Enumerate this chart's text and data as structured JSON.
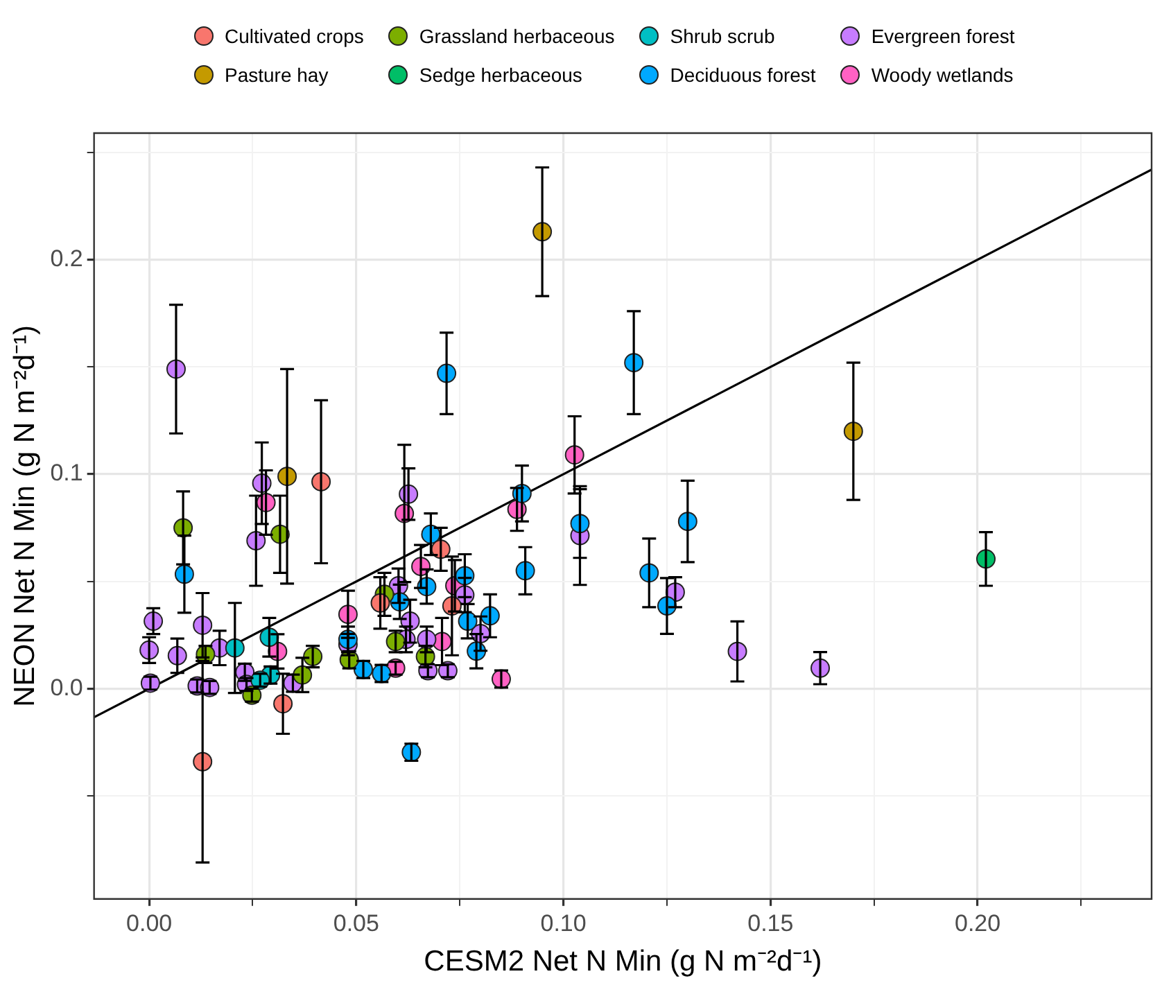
{
  "chart_data": {
    "type": "scatter",
    "xlabel": "CESM2 Net N Min (g N m⁻²d⁻¹)",
    "ylabel": "NEON Net N Min (g N m⁻²d⁻¹)",
    "xlim": [
      -0.0133,
      0.242
    ],
    "ylim": [
      -0.098,
      0.259
    ],
    "xticks": [
      {
        "value": 0,
        "label": "0.00"
      },
      {
        "value": 0.025,
        "label": null
      },
      {
        "value": 0.05,
        "label": "0.05"
      },
      {
        "value": 0.075,
        "label": null
      },
      {
        "value": 0.1,
        "label": "0.10"
      },
      {
        "value": 0.125,
        "label": null
      },
      {
        "value": 0.15,
        "label": "0.15"
      },
      {
        "value": 0.175,
        "label": null
      },
      {
        "value": 0.2,
        "label": "0.20"
      },
      {
        "value": 0.225,
        "label": null
      }
    ],
    "yticks": [
      {
        "value": -0.05,
        "label": null
      },
      {
        "value": 0,
        "label": "0.0"
      },
      {
        "value": 0.05,
        "label": null
      },
      {
        "value": 0.1,
        "label": "0.1"
      },
      {
        "value": 0.15,
        "label": null
      },
      {
        "value": 0.2,
        "label": "0.2"
      },
      {
        "value": 0.25,
        "label": null
      }
    ],
    "grid": true,
    "legend": "top",
    "marker": "circle",
    "series": [
      {
        "name": "Cultivated crops",
        "color": "#f8766d",
        "x": [
          0.0129,
          0.0323,
          0.0415,
          0.0558,
          0.0704,
          0.0731
        ],
        "values": [
          -0.034,
          -0.007,
          0.0965,
          0.04,
          0.065,
          0.0386
        ],
        "errors": [
          0.047,
          0.014,
          0.038,
          0.012,
          0.01,
          0.023
        ]
      },
      {
        "name": "Pasture hay",
        "color": "#c49a00",
        "x": [
          0.0333,
          0.0949,
          0.17
        ],
        "values": [
          0.099,
          0.213,
          0.12
        ],
        "errors": [
          0.05,
          0.03,
          0.032
        ]
      },
      {
        "name": "Grassland herbaceous",
        "color": "#7cae00",
        "x": [
          0.0082,
          0.0316,
          0.0136,
          0.0248,
          0.037,
          0.0395,
          0.0483,
          0.0568,
          0.0595,
          0.0667
        ],
        "values": [
          0.075,
          0.072,
          0.016,
          -0.003,
          0.0064,
          0.015,
          0.0135,
          0.044,
          0.022,
          0.015
        ],
        "errors": [
          0.017,
          0.018,
          0.004,
          0.003,
          0.008,
          0.005,
          0.004,
          0.01,
          0.005,
          0.005
        ]
      },
      {
        "name": "Sedge herbaceous",
        "color": "#00be67",
        "x": [
          0.202
        ],
        "values": [
          0.0605
        ],
        "errors": [
          0.0125
        ]
      },
      {
        "name": "Shrub scrub",
        "color": "#00bfc4",
        "x": [
          0.0207,
          0.029,
          0.0293,
          0.0268
        ],
        "values": [
          0.019,
          0.024,
          0.0064,
          0.004
        ],
        "errors": [
          0.021,
          0.009,
          0.004,
          0.003
        ]
      },
      {
        "name": "Deciduous forest",
        "color": "#00a9ff",
        "x": [
          0.0085,
          0.0718,
          0.117,
          0.13,
          0.1207,
          0.125,
          0.09,
          0.104,
          0.0908,
          0.068,
          0.067,
          0.0762,
          0.0605,
          0.0769,
          0.0823,
          0.079,
          0.0517,
          0.0561,
          0.048,
          0.0633
        ],
        "values": [
          0.0534,
          0.147,
          0.152,
          0.078,
          0.054,
          0.0386,
          0.091,
          0.077,
          0.055,
          0.072,
          0.0476,
          0.0527,
          0.0405,
          0.0315,
          0.034,
          0.0175,
          0.009,
          0.0071,
          0.023,
          -0.0296
        ],
        "errors": [
          0.018,
          0.019,
          0.024,
          0.019,
          0.016,
          0.013,
          0.013,
          0.016,
          0.011,
          0.0097,
          0.008,
          0.01,
          0.008,
          0.008,
          0.01,
          0.008,
          0.004,
          0.004,
          0.006,
          0.004
        ]
      },
      {
        "name": "Evergreen forest",
        "color": "#c77cff",
        "x": [
          0.0065,
          0.001,
          0.0,
          0.0003,
          0.0068,
          0.0129,
          0.017,
          0.0116,
          0.0146,
          0.0231,
          0.0235,
          0.0347,
          0.0258,
          0.0272,
          0.0626,
          0.104,
          0.048,
          0.0602,
          0.063,
          0.062,
          0.067,
          0.0762,
          0.0673,
          0.0721,
          0.08,
          0.127,
          0.142,
          0.162
        ],
        "values": [
          0.149,
          0.0315,
          0.018,
          0.0026,
          0.0154,
          0.0296,
          0.019,
          0.0013,
          0.0006,
          0.0077,
          0.002,
          0.0026,
          0.069,
          0.0958,
          0.0907,
          0.0714,
          0.0206,
          0.048,
          0.0315,
          0.023,
          0.023,
          0.0437,
          0.0084,
          0.0084,
          0.0257,
          0.045,
          0.0174,
          0.0096
        ],
        "errors": [
          0.03,
          0.006,
          0.006,
          0.003,
          0.008,
          0.015,
          0.008,
          0.003,
          0.003,
          0.004,
          0.003,
          0.004,
          0.021,
          0.019,
          0.012,
          0.023,
          0.005,
          0.008,
          0.01,
          0.006,
          0.006,
          0.008,
          0.003,
          0.003,
          0.008,
          0.007,
          0.014,
          0.0075
        ]
      },
      {
        "name": "Woody wetlands",
        "color": "#ff61c3",
        "x": [
          0.1027,
          0.0282,
          0.031,
          0.0888,
          0.0616,
          0.0656,
          0.048,
          0.0738,
          0.0707,
          0.0595,
          0.085
        ],
        "values": [
          0.109,
          0.0868,
          0.0174,
          0.0836,
          0.0817,
          0.057,
          0.0347,
          0.048,
          0.022,
          0.0096,
          0.0045
        ],
        "errors": [
          0.018,
          0.015,
          0.008,
          0.01,
          0.032,
          0.01,
          0.011,
          0.012,
          0.011,
          0.003,
          0.004
        ]
      },
      {
        "type": "line",
        "marker": "none",
        "color": "#000000",
        "x": [
          -0.0133,
          0.242
        ],
        "values": [
          -0.0133,
          0.242
        ]
      }
    ]
  }
}
